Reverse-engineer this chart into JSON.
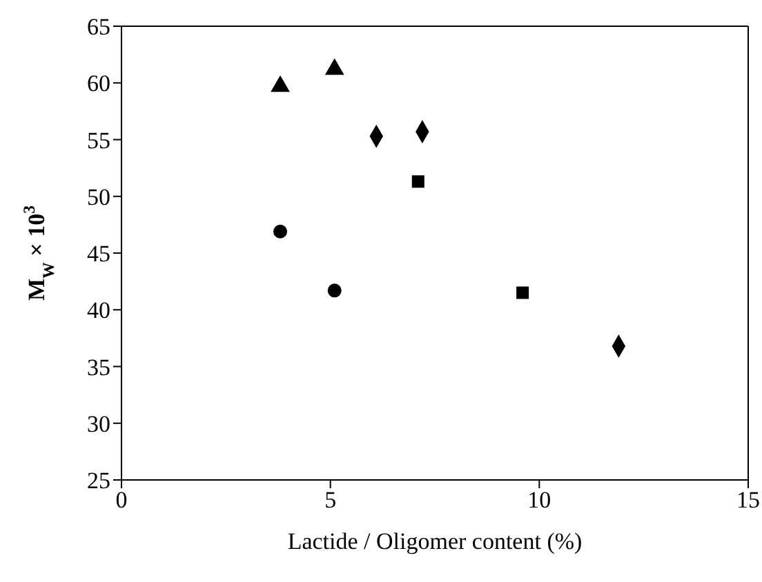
{
  "chart_data": {
    "type": "scatter",
    "xlabel": "Lactide / Oligomer content (%)",
    "ylabel": "M$_{W}$ × 10$^{3}$",
    "xlim": [
      0,
      15
    ],
    "xticks": [
      0,
      5,
      10,
      15
    ],
    "ylim": [
      25,
      65
    ],
    "yticks": [
      25,
      30,
      35,
      40,
      45,
      50,
      55,
      60,
      65
    ],
    "series": [
      {
        "color": "#000000",
        "marker": "triangle",
        "x": [
          3.8,
          5.1
        ],
        "values": [
          59.7,
          61.2
        ]
      },
      {
        "color": "#000000",
        "marker": "diamond",
        "x": [
          6.1,
          7.2,
          11.9
        ],
        "values": [
          55.3,
          55.7,
          36.8
        ]
      },
      {
        "color": "#000000",
        "marker": "square",
        "x": [
          7.1,
          9.6
        ],
        "values": [
          51.3,
          41.5
        ]
      },
      {
        "color": "#000000",
        "marker": "circle",
        "x": [
          3.8,
          5.1
        ],
        "values": [
          46.9,
          41.7
        ]
      }
    ]
  }
}
